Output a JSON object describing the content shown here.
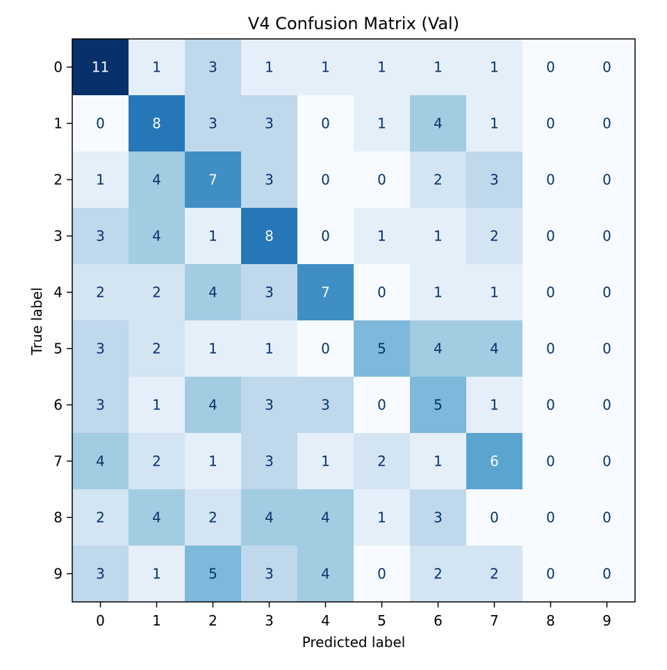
{
  "chart_data": {
    "type": "heatmap",
    "title": "V4 Confusion Matrix (Val)",
    "xlabel": "Predicted label",
    "ylabel": "True label",
    "x_categories": [
      "0",
      "1",
      "2",
      "3",
      "4",
      "5",
      "6",
      "7",
      "8",
      "9"
    ],
    "y_categories": [
      "0",
      "1",
      "2",
      "3",
      "4",
      "5",
      "6",
      "7",
      "8",
      "9"
    ],
    "values": [
      [
        11,
        1,
        3,
        1,
        1,
        1,
        1,
        1,
        0,
        0
      ],
      [
        0,
        8,
        3,
        3,
        0,
        1,
        4,
        1,
        0,
        0
      ],
      [
        1,
        4,
        7,
        3,
        0,
        0,
        2,
        3,
        0,
        0
      ],
      [
        3,
        4,
        1,
        8,
        0,
        1,
        1,
        2,
        0,
        0
      ],
      [
        2,
        2,
        4,
        3,
        7,
        0,
        1,
        1,
        0,
        0
      ],
      [
        3,
        2,
        1,
        1,
        0,
        5,
        4,
        4,
        0,
        0
      ],
      [
        3,
        1,
        4,
        3,
        3,
        0,
        5,
        1,
        0,
        0
      ],
      [
        4,
        2,
        1,
        3,
        1,
        2,
        1,
        6,
        0,
        0
      ],
      [
        2,
        4,
        2,
        4,
        4,
        1,
        3,
        0,
        0,
        0
      ],
      [
        3,
        1,
        5,
        3,
        4,
        0,
        2,
        2,
        0,
        0
      ]
    ],
    "value_range": [
      0,
      11
    ],
    "colormap": "Blues",
    "colorbar": false,
    "grid": false
  },
  "colors": {
    "low": "#f7fbff",
    "high": "#08306b",
    "text_dark": "#08306b",
    "text_light": "#f7fbff",
    "axis": "#000000"
  }
}
